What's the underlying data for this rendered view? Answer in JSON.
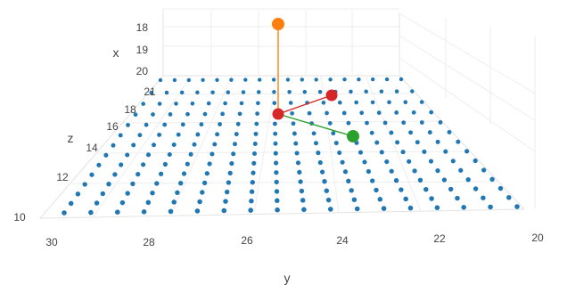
{
  "chart_data": {
    "type": "scatter3d",
    "x_axis": {
      "label": "x",
      "ticks": [
        "18",
        "19",
        "20"
      ]
    },
    "y_axis": {
      "label": "y",
      "ticks": [
        "30",
        "28",
        "26",
        "24",
        "22",
        "20"
      ],
      "range": [
        30,
        20
      ]
    },
    "z_axis": {
      "label": "z",
      "ticks": [
        "10",
        "12",
        "14",
        "16",
        "18",
        "21"
      ]
    },
    "grid": true,
    "background_points": {
      "color": "#1f77b4",
      "rows": 14,
      "cols": 18,
      "description_free": true
    },
    "highlight_points": [
      {
        "name": "",
        "color": "#ff7f0e"
      },
      {
        "name": "",
        "color": "#d62728"
      },
      {
        "name": "",
        "color": "#d62728"
      },
      {
        "name": "",
        "color": "#2ca02c"
      }
    ],
    "connectors": [
      {
        "from": 1,
        "to": 0,
        "color": "#ff7f0e"
      },
      {
        "from": 1,
        "to": 2,
        "color": "#d62728"
      },
      {
        "from": 1,
        "to": 3,
        "color": "#2ca02c"
      }
    ]
  }
}
